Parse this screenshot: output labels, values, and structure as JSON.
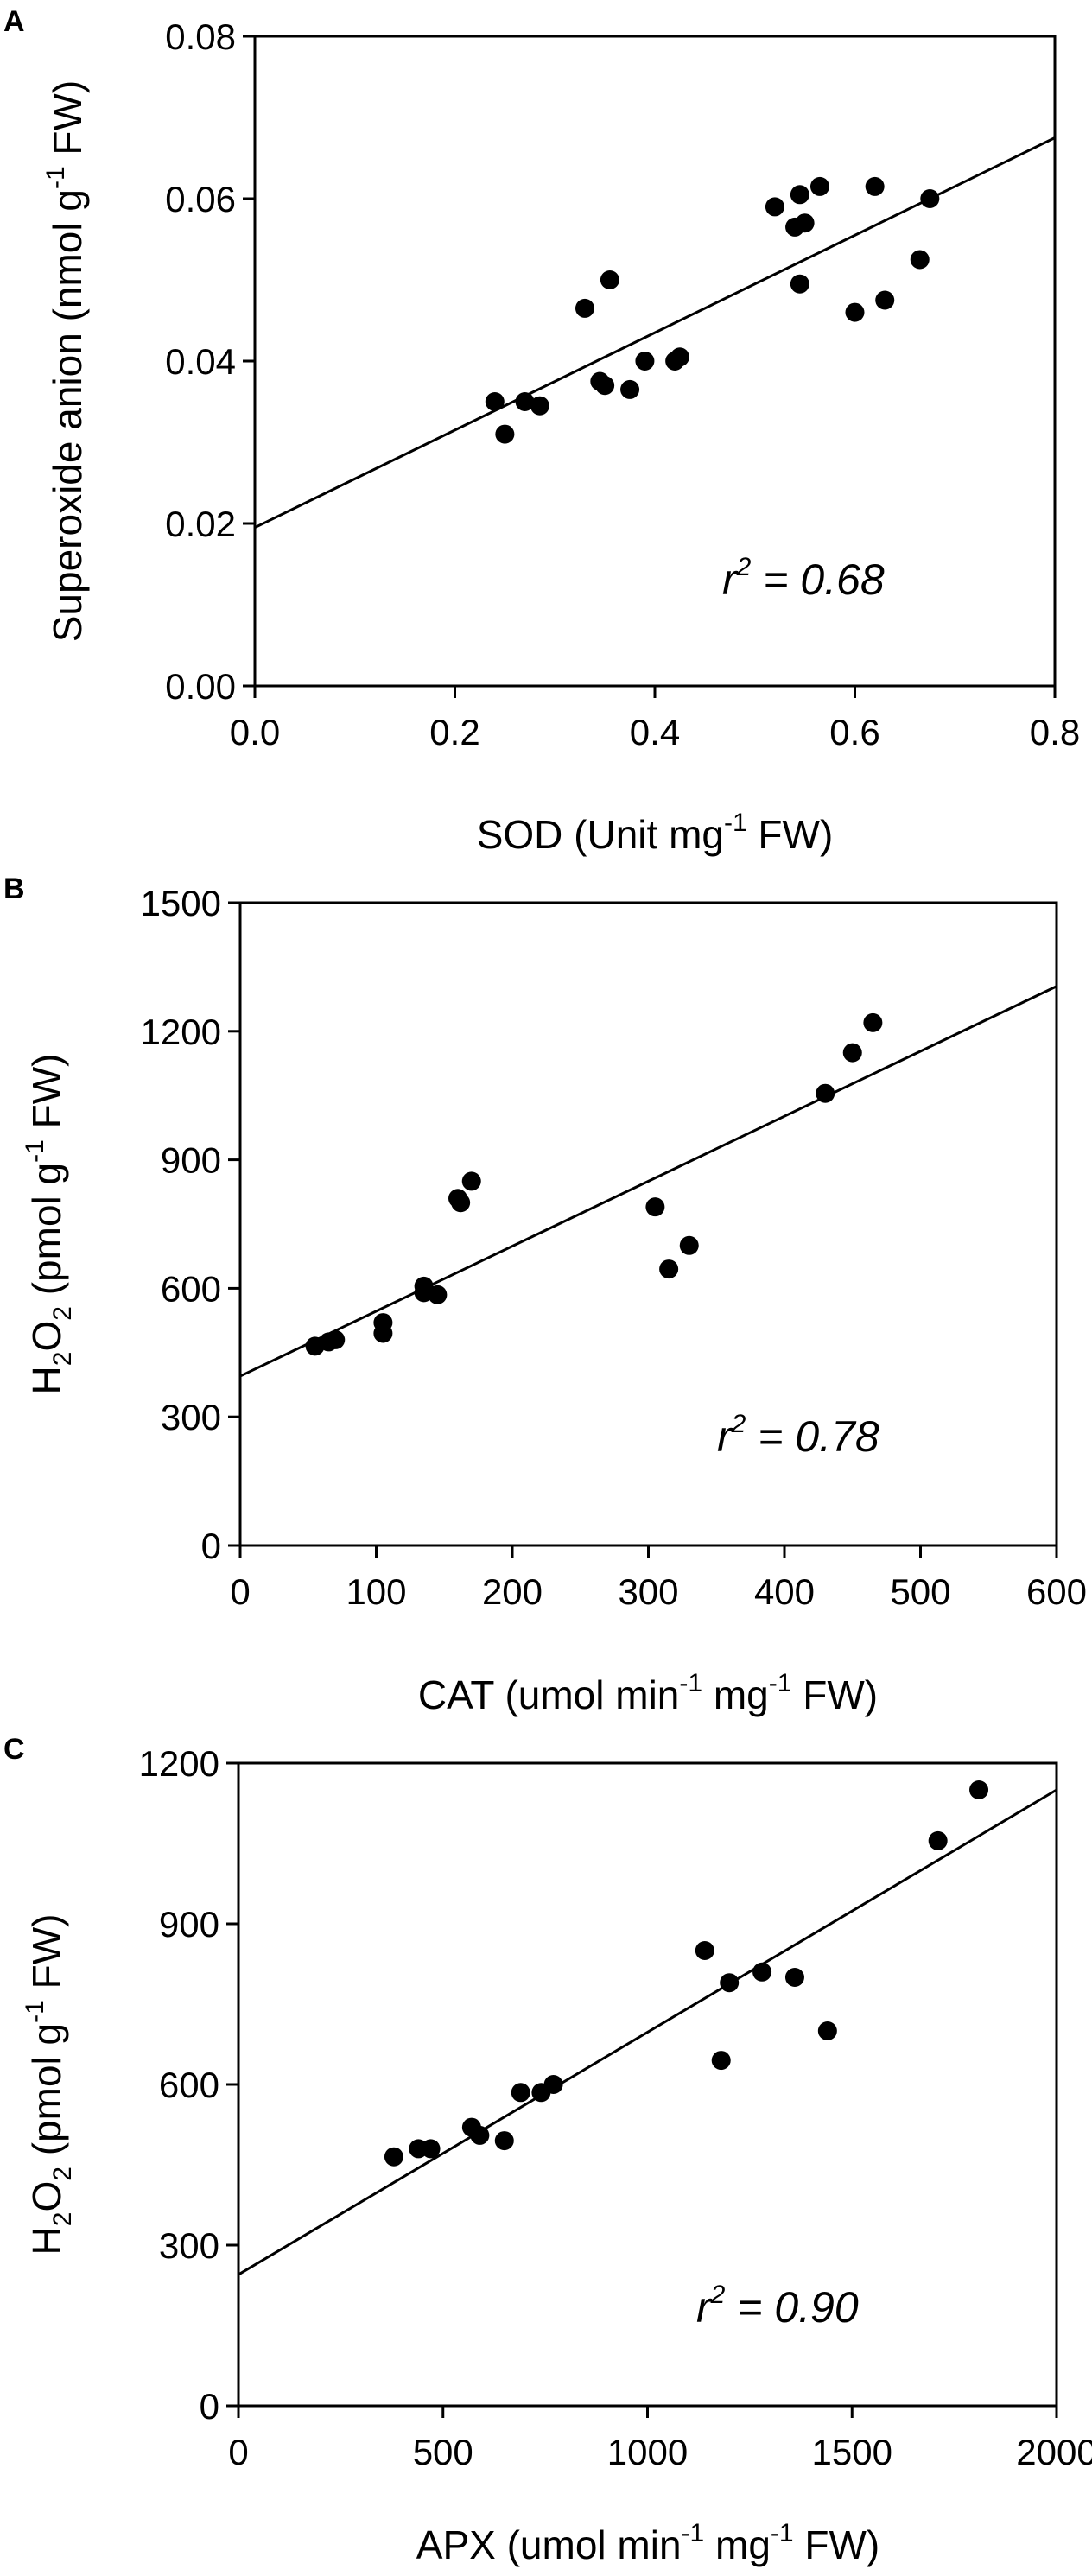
{
  "chart_data": [
    {
      "type": "scatter",
      "panel_label": "A",
      "ylabel_parts": {
        "pre": "Superoxide anion (nmol g",
        "sup": "-1",
        "post": " FW)"
      },
      "xlabel_parts": {
        "pre": "SOD (Unit mg",
        "sup": "-1",
        "post": " FW)"
      },
      "xlim": [
        0.0,
        0.8
      ],
      "ylim": [
        0.0,
        0.08
      ],
      "xticks": [
        "0.0",
        "0.2",
        "0.4",
        "0.6",
        "0.8"
      ],
      "yticks": [
        "0.00",
        "0.02",
        "0.04",
        "0.06",
        "0.08"
      ],
      "points": [
        [
          0.24,
          0.035
        ],
        [
          0.25,
          0.031
        ],
        [
          0.27,
          0.035
        ],
        [
          0.285,
          0.0345
        ],
        [
          0.33,
          0.0465
        ],
        [
          0.345,
          0.0375
        ],
        [
          0.35,
          0.037
        ],
        [
          0.355,
          0.05
        ],
        [
          0.375,
          0.0365
        ],
        [
          0.39,
          0.04
        ],
        [
          0.42,
          0.04
        ],
        [
          0.425,
          0.0405
        ],
        [
          0.52,
          0.059
        ],
        [
          0.54,
          0.0565
        ],
        [
          0.545,
          0.0605
        ],
        [
          0.55,
          0.057
        ],
        [
          0.545,
          0.0495
        ],
        [
          0.565,
          0.0615
        ],
        [
          0.6,
          0.046
        ],
        [
          0.62,
          0.0615
        ],
        [
          0.63,
          0.0475
        ],
        [
          0.665,
          0.0525
        ],
        [
          0.675,
          0.06
        ]
      ],
      "trendline": [
        [
          0.0,
          0.0195
        ],
        [
          0.8,
          0.0675
        ]
      ],
      "annotation": {
        "r": "r",
        "sup": "2",
        "rest": " = 0.68"
      }
    },
    {
      "type": "scatter",
      "panel_label": "B",
      "ylabel_parts": {
        "pre": "H",
        "sub1": "2",
        "mid": "O",
        "sub2": "2",
        "pre2": " (pmol g",
        "sup": "-1",
        "post": " FW)"
      },
      "xlabel_parts": {
        "pre": "CAT (umol min",
        "sup1": "-1",
        "mid": " mg",
        "sup2": "-1",
        "post": " FW)"
      },
      "xlim": [
        0,
        600
      ],
      "ylim": [
        0,
        1500
      ],
      "xticks": [
        "0",
        "100",
        "200",
        "300",
        "400",
        "500",
        "600"
      ],
      "yticks": [
        "0",
        "300",
        "600",
        "900",
        "1200",
        "1500"
      ],
      "points": [
        [
          55,
          465
        ],
        [
          65,
          475
        ],
        [
          70,
          480
        ],
        [
          105,
          520
        ],
        [
          105,
          495
        ],
        [
          135,
          605
        ],
        [
          135,
          590
        ],
        [
          145,
          585
        ],
        [
          160,
          810
        ],
        [
          162,
          800
        ],
        [
          170,
          850
        ],
        [
          305,
          790
        ],
        [
          315,
          645
        ],
        [
          330,
          700
        ],
        [
          430,
          1055
        ],
        [
          450,
          1150
        ],
        [
          465,
          1220
        ]
      ],
      "trendline": [
        [
          0,
          395
        ],
        [
          600,
          1305
        ]
      ],
      "annotation": {
        "r": "r",
        "sup": "2",
        "rest": " = 0.78"
      }
    },
    {
      "type": "scatter",
      "panel_label": "C",
      "ylabel_parts": {
        "pre": "H",
        "sub1": "2",
        "mid": "O",
        "sub2": "2",
        "pre2": " (pmol g",
        "sup": "-1",
        "post": " FW)"
      },
      "xlabel_parts": {
        "pre": "APX (umol min",
        "sup1": "-1",
        "mid": " mg",
        "sup2": "-1",
        "post": " FW)"
      },
      "xlim": [
        0,
        2000
      ],
      "ylim": [
        0,
        1200
      ],
      "xticks": [
        "0",
        "500",
        "1000",
        "1500",
        "2000"
      ],
      "yticks": [
        "0",
        "300",
        "600",
        "900",
        "1200"
      ],
      "points": [
        [
          380,
          465
        ],
        [
          440,
          480
        ],
        [
          470,
          480
        ],
        [
          570,
          520
        ],
        [
          590,
          505
        ],
        [
          650,
          495
        ],
        [
          690,
          585
        ],
        [
          740,
          585
        ],
        [
          770,
          600
        ],
        [
          1140,
          850
        ],
        [
          1180,
          645
        ],
        [
          1200,
          790
        ],
        [
          1280,
          810
        ],
        [
          1360,
          800
        ],
        [
          1440,
          700
        ],
        [
          1710,
          1055
        ],
        [
          1810,
          1150
        ]
      ],
      "trendline": [
        [
          0,
          245
        ],
        [
          2000,
          1150
        ]
      ],
      "annotation": {
        "r": "r",
        "sup": "2",
        "rest": " = 0.90"
      }
    }
  ]
}
